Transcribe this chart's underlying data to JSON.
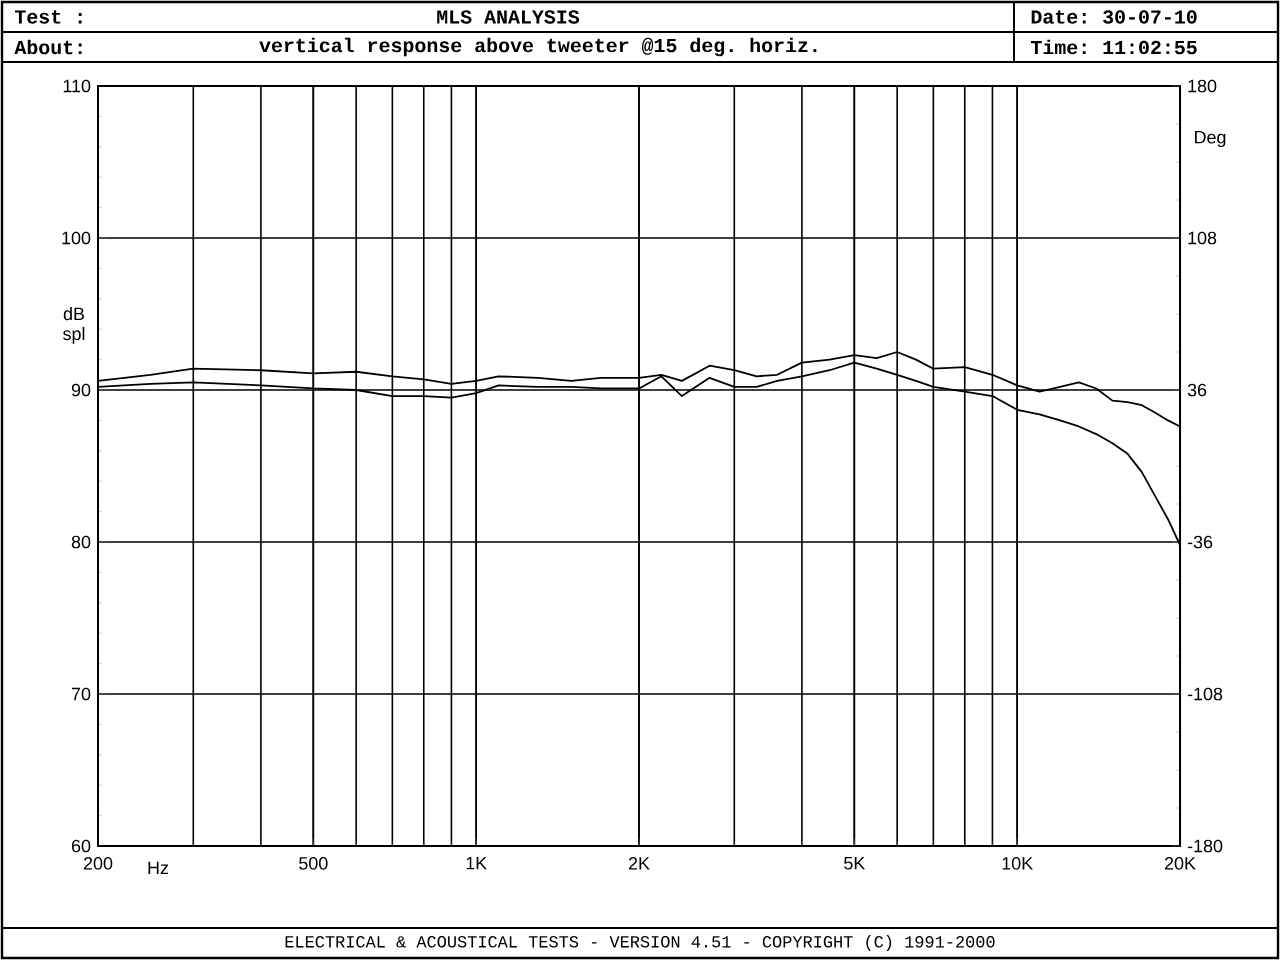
{
  "chart_data": {
    "type": "line",
    "title": "MLS ANALYSIS",
    "xlabel": "Hz",
    "ylabel": "dB spl",
    "y2label": "Deg",
    "annotations": [
      "Test :",
      "About:",
      "vertical response above tweeter @15 deg. horiz.",
      "Date: 30-07-10",
      "Time: 11:02:55",
      "ELECTRICAL & ACOUSTICAL TESTS  -  VERSION 4.51  -  COPYRIGHT (C) 1991-2000"
    ],
    "x": [
      200,
      250,
      300,
      400,
      500,
      600,
      700,
      800,
      900,
      1000,
      1100,
      1300,
      1500,
      1700,
      2000,
      2200,
      2400,
      2700,
      3000,
      3300,
      3600,
      4000,
      4500,
      5000,
      5500,
      6000,
      6500,
      7000,
      8000,
      9000,
      10000,
      11000,
      12000,
      13000,
      14000,
      15000,
      16000,
      17000,
      18000,
      19000,
      20000
    ],
    "series": [
      {
        "color": "#000000",
        "values": [
          90.6,
          91.0,
          91.4,
          91.3,
          91.1,
          91.2,
          90.9,
          90.7,
          90.4,
          90.6,
          90.9,
          90.8,
          90.6,
          90.8,
          90.8,
          91.0,
          90.6,
          91.6,
          91.3,
          90.9,
          91.0,
          91.8,
          92.0,
          92.3,
          92.1,
          92.5,
          92.0,
          91.4,
          91.5,
          91.0,
          90.3,
          89.9,
          90.2,
          90.5,
          90.1,
          89.3,
          89.2,
          89.0,
          88.5,
          88.0,
          87.6
        ]
      },
      {
        "color": "#000000",
        "values": [
          90.2,
          90.4,
          90.5,
          90.3,
          90.1,
          90.0,
          89.6,
          89.6,
          89.5,
          89.8,
          90.3,
          90.2,
          90.2,
          90.1,
          90.1,
          90.9,
          89.6,
          90.8,
          90.2,
          90.2,
          90.6,
          90.9,
          91.3,
          91.8,
          91.4,
          91.0,
          90.6,
          90.2,
          89.9,
          89.6,
          88.7,
          88.4,
          88.0,
          87.6,
          87.1,
          86.5,
          85.8,
          84.6,
          83.0,
          81.5,
          79.8
        ]
      }
    ],
    "log": "x",
    "grid": true,
    "xlim": [
      200,
      20000
    ],
    "ylim": [
      60,
      110
    ],
    "xticks": [
      200,
      500,
      {
        "value": 1000,
        "label": "1K"
      },
      {
        "value": 2000,
        "label": "2K"
      },
      {
        "value": 5000,
        "label": "5K"
      },
      {
        "value": 10000,
        "label": "10K"
      },
      {
        "value": 20000,
        "label": "20K"
      }
    ],
    "yticks": [
      60,
      70,
      80,
      90,
      100,
      110
    ],
    "y2lim": [
      -180,
      180
    ],
    "y2ticks": [
      -180,
      -108,
      -36,
      36,
      108,
      180
    ]
  }
}
